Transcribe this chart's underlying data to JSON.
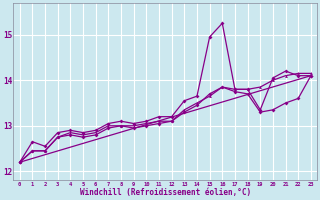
{
  "background_color": "#cce8ef",
  "grid_color": "#ffffff",
  "line_color": "#880088",
  "xlabel": "Windchill (Refroidissement éolien,°C)",
  "xlim": [
    -0.5,
    23.5
  ],
  "ylim": [
    11.8,
    15.7
  ],
  "yticks": [
    12,
    13,
    14,
    15
  ],
  "xticks": [
    0,
    1,
    2,
    3,
    4,
    5,
    6,
    7,
    8,
    9,
    10,
    11,
    12,
    13,
    14,
    15,
    16,
    17,
    18,
    19,
    20,
    21,
    22,
    23
  ],
  "series1": [
    [
      0,
      12.2
    ],
    [
      1,
      12.65
    ],
    [
      2,
      12.55
    ],
    [
      3,
      12.85
    ],
    [
      4,
      12.9
    ],
    [
      5,
      12.85
    ],
    [
      6,
      12.9
    ],
    [
      7,
      13.05
    ],
    [
      8,
      13.1
    ],
    [
      9,
      13.05
    ],
    [
      10,
      13.1
    ],
    [
      11,
      13.2
    ],
    [
      12,
      13.2
    ],
    [
      13,
      13.55
    ],
    [
      14,
      13.65
    ],
    [
      15,
      14.95
    ],
    [
      16,
      15.25
    ],
    [
      17,
      13.8
    ],
    [
      18,
      13.8
    ],
    [
      19,
      13.35
    ],
    [
      20,
      14.05
    ],
    [
      21,
      14.2
    ],
    [
      22,
      14.1
    ],
    [
      23,
      14.1
    ]
  ],
  "series2": [
    [
      0,
      12.2
    ],
    [
      1,
      12.45
    ],
    [
      2,
      12.45
    ],
    [
      3,
      12.75
    ],
    [
      4,
      12.8
    ],
    [
      5,
      12.75
    ],
    [
      6,
      12.8
    ],
    [
      7,
      12.95
    ],
    [
      8,
      13.0
    ],
    [
      9,
      12.95
    ],
    [
      10,
      13.0
    ],
    [
      11,
      13.05
    ],
    [
      12,
      13.1
    ],
    [
      13,
      13.3
    ],
    [
      14,
      13.45
    ],
    [
      15,
      13.7
    ],
    [
      16,
      13.85
    ],
    [
      17,
      13.75
    ],
    [
      18,
      13.7
    ],
    [
      19,
      13.3
    ],
    [
      20,
      13.35
    ],
    [
      21,
      13.5
    ],
    [
      22,
      13.6
    ],
    [
      23,
      14.1
    ]
  ],
  "series3": [
    [
      0,
      12.2
    ],
    [
      1,
      12.45
    ],
    [
      2,
      12.45
    ],
    [
      3,
      12.75
    ],
    [
      4,
      12.85
    ],
    [
      5,
      12.8
    ],
    [
      6,
      12.85
    ],
    [
      7,
      13.0
    ],
    [
      8,
      13.0
    ],
    [
      9,
      13.0
    ],
    [
      10,
      13.05
    ],
    [
      11,
      13.1
    ],
    [
      12,
      13.1
    ],
    [
      13,
      13.35
    ],
    [
      14,
      13.5
    ],
    [
      15,
      13.65
    ],
    [
      16,
      13.85
    ],
    [
      17,
      13.8
    ],
    [
      18,
      13.8
    ],
    [
      19,
      13.85
    ],
    [
      20,
      14.0
    ],
    [
      21,
      14.1
    ],
    [
      22,
      14.15
    ],
    [
      23,
      14.15
    ]
  ],
  "series4": [
    [
      0,
      12.2
    ],
    [
      23,
      14.1
    ]
  ]
}
